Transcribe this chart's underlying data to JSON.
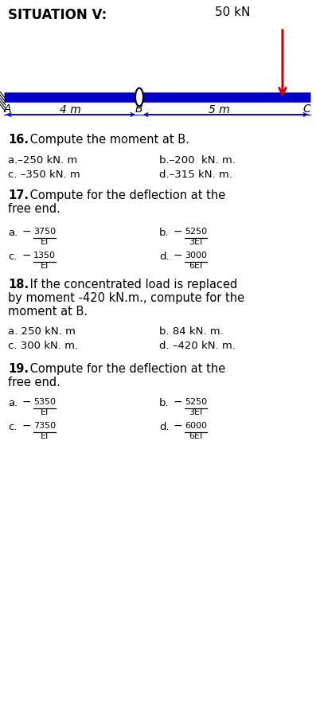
{
  "title": "SITUATION V:",
  "load_label": "50 kN",
  "beam_color": "#0000CC",
  "arrow_color": "#CC0000",
  "dim_color": "#0000CC",
  "background": "#ffffff",
  "q16_title_bold": "16.",
  "q16_title_rest": " Compute the moment at B.",
  "q16_a": "a.–250 kN. m",
  "q16_b": "b.–200  kN. m.",
  "q16_c": "c. –350 kN. m",
  "q16_d": "d.–315 kN. m.",
  "q17_a_num": "3750",
  "q17_a_den": "EI",
  "q17_b_num": "5250",
  "q17_b_den": "3EI",
  "q17_c_num": "1350",
  "q17_c_den": "EI",
  "q17_d_num": "3000",
  "q17_d_den": "6EI",
  "q18_a": "a. 250 kN. m",
  "q18_b": "b. 84 kN. m.",
  "q18_c": "c. 300 kN. m.",
  "q18_d": "d. –420 kN. m.",
  "q19_a_num": "5350",
  "q19_a_den": "EI",
  "q19_b_num": "5250",
  "q19_b_den": "3EI",
  "q19_c_num": "7350",
  "q19_c_den": "EI",
  "q19_d_num": "6000",
  "q19_d_den": "6EI",
  "fig_w": 3.97,
  "fig_h": 9.02,
  "dpi": 100
}
